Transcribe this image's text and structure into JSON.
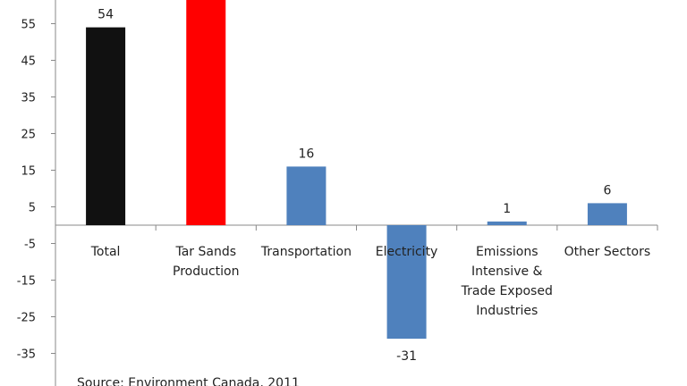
{
  "chart_data": {
    "type": "bar",
    "categories": [
      "Total",
      "Tar Sands\nProduction",
      "Transportation",
      "Electricity",
      "Emissions\nIntensive &\nTrade Exposed\nIndustries",
      "Other Sectors"
    ],
    "values": [
      54,
      62,
      16,
      -31,
      1,
      6
    ],
    "data_labels": [
      "54",
      "",
      "16",
      "-31",
      "1",
      "6"
    ],
    "colors": [
      "#111111",
      "#ff0000",
      "#4f81bd",
      "#4f81bd",
      "#4f81bd",
      "#4f81bd"
    ],
    "yticks": [
      55,
      45,
      35,
      25,
      15,
      5,
      -5,
      -15,
      -25,
      -35
    ],
    "ylim": [
      -35,
      62
    ],
    "grid": false,
    "legend": "none"
  },
  "source_note": "Source: Environment Canada, 2011"
}
